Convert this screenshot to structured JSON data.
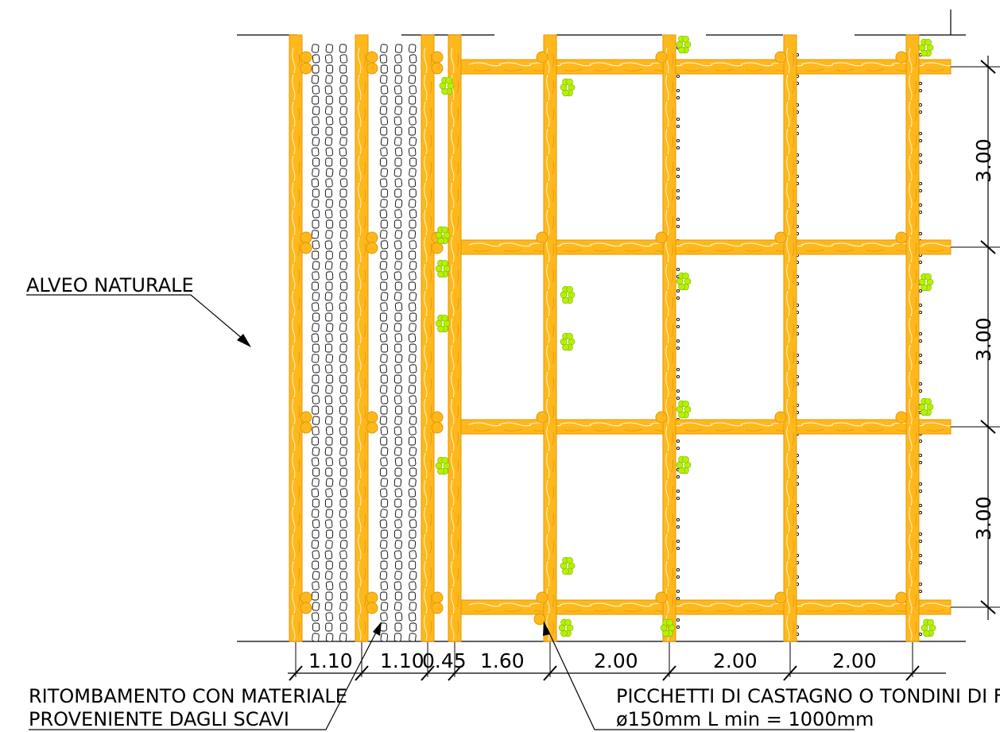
{
  "labels": {
    "alveo": "ALVEO NATURALE",
    "ritombamento_line1": "RITOMBAMENTO CON MATERIALE",
    "ritombamento_line2": "PROVENIENTE DAGLI SCAVI",
    "picchetti_line1": "PICCHETTI DI CASTAGNO O TONDINI DI FERRO",
    "picchetti_line2": "ø150mm L min = 1000mm"
  },
  "dimensions_bottom": [
    "1.10",
    "1.10",
    "0.45",
    "1.60",
    "2.00",
    "2.00",
    "2.00"
  ],
  "dimensions_right": [
    "3.00",
    "3.00",
    "3.00"
  ],
  "colors": {
    "timber": "#FFB81C",
    "timber_stroke": "#E39600",
    "vegetation": "#B5F200",
    "line": "#000000"
  }
}
